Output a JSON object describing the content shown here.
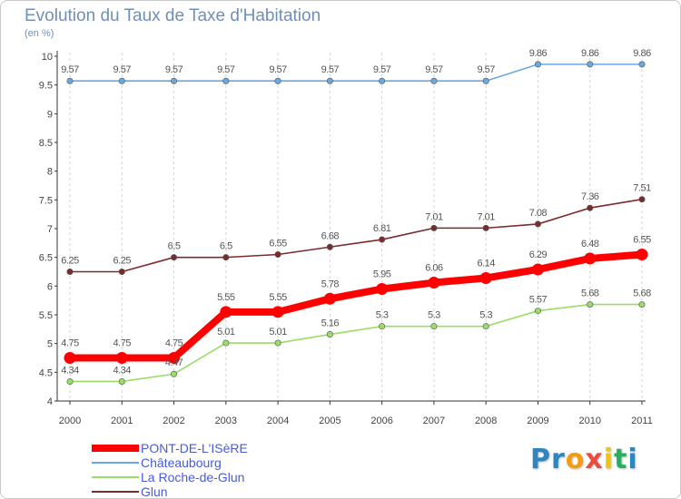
{
  "title": "Evolution du Taux de Taxe d'Habitation",
  "subtitle": "(en %)",
  "chart_data": {
    "type": "line",
    "title": "Evolution du Taux de Taxe d'Habitation",
    "ylabel": "(en %)",
    "xlabel": "",
    "x": [
      "2000",
      "2001",
      "2002",
      "2003",
      "2004",
      "2005",
      "2006",
      "2007",
      "2008",
      "2009",
      "2010",
      "2011"
    ],
    "y_ticks": [
      "4",
      "4.5",
      "5",
      "5.5",
      "6",
      "6.5",
      "7",
      "7.5",
      "8",
      "8.5",
      "9",
      "9.5",
      "10"
    ],
    "ylim": [
      4,
      10
    ],
    "grid": "vertical-dashed",
    "legend_position": "bottom-left",
    "series": [
      {
        "name": "PONT-DE-L'ISèRE",
        "color": "#ff0000",
        "values": [
          4.75,
          4.75,
          4.75,
          5.55,
          5.55,
          5.78,
          5.95,
          6.06,
          6.14,
          6.29,
          6.48,
          6.55
        ],
        "labels": [
          "4.75",
          "4.75",
          "4.75",
          "5.55",
          "5.55",
          "5.78",
          "5.95",
          "6.06",
          "6.14",
          "6.29",
          "6.48",
          "6.55"
        ]
      },
      {
        "name": "Châteaubourg",
        "color": "#6aa8e0",
        "values": [
          9.57,
          9.57,
          9.57,
          9.57,
          9.57,
          9.57,
          9.57,
          9.57,
          9.57,
          9.86,
          9.86,
          9.86
        ],
        "labels": [
          "9.57",
          "9.57",
          "9.57",
          "9.57",
          "9.57",
          "9.57",
          "9.57",
          "9.57",
          "9.57",
          "9.86",
          "9.86",
          "9.86"
        ]
      },
      {
        "name": "La Roche-de-Glun",
        "color": "#99dd66",
        "values": [
          4.34,
          4.34,
          4.47,
          5.01,
          5.01,
          5.16,
          5.3,
          5.3,
          5.3,
          5.57,
          5.68,
          5.68
        ],
        "labels": [
          "4.34",
          "4.34",
          "4.47",
          "5.01",
          "5.01",
          "5.16",
          "5.3",
          "5.3",
          "5.3",
          "5.57",
          "5.68",
          "5.68"
        ]
      },
      {
        "name": "Glun",
        "color": "#7a2c2c",
        "values": [
          6.25,
          6.25,
          6.5,
          6.5,
          6.55,
          6.68,
          6.81,
          7.01,
          7.01,
          7.08,
          7.36,
          7.51
        ],
        "labels": [
          "6.25",
          "6.25",
          "6.5",
          "6.5",
          "6.55",
          "6.68",
          "6.81",
          "7.01",
          "7.01",
          "7.08",
          "7.36",
          "7.51"
        ]
      }
    ]
  },
  "logo": {
    "letters": [
      "P",
      "r",
      "o",
      "x",
      "i",
      "t",
      "i"
    ],
    "colors": [
      "#2e86c1",
      "#2e86c1",
      "#f39c12",
      "#e74c3c",
      "#f1c40f",
      "#27ae60",
      "#2e86c1"
    ]
  }
}
